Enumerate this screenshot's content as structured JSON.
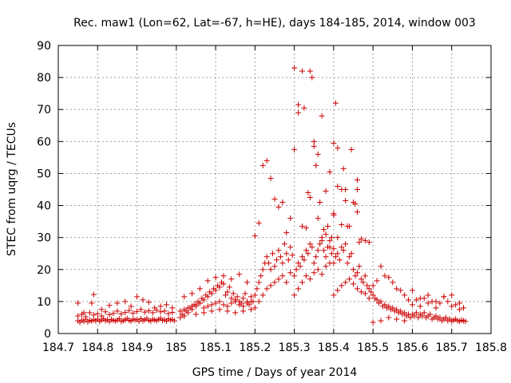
{
  "chart_data": {
    "type": "scatter",
    "title": "Rec. maw1 (Lon=62, Lat=-67, h=HE), days 184-185, 2014, window 003",
    "xlabel": "GPS time / Days of year 2014",
    "ylabel": "STEC from uqrg / TECUs",
    "xlim": [
      184.7,
      185.8
    ],
    "ylim": [
      0,
      90
    ],
    "xticks": [
      184.7,
      184.8,
      184.9,
      185,
      185.1,
      185.2,
      185.3,
      185.4,
      185.5,
      185.6,
      185.7,
      185.8
    ],
    "xtick_labels": [
      "184.7",
      "184.8",
      "184.9",
      "185",
      "185.1",
      "185.2",
      "185.3",
      "185.4",
      "185.5",
      "185.6",
      "185.7",
      "185.8"
    ],
    "yticks": [
      0,
      10,
      20,
      30,
      40,
      50,
      60,
      70,
      80,
      90
    ],
    "ytick_labels": [
      "0",
      "10",
      "20",
      "30",
      "40",
      "50",
      "60",
      "70",
      "80",
      "90"
    ],
    "grid": true,
    "marker": "+",
    "color": "#cc0000",
    "series": [
      {
        "x": [
          184.75,
          184.755,
          184.76,
          184.765,
          184.77,
          184.775,
          184.78,
          184.785,
          184.79,
          184.795,
          184.8,
          184.805,
          184.81,
          184.815,
          184.82,
          184.825,
          184.83,
          184.835,
          184.84,
          184.845,
          184.85,
          184.855,
          184.86,
          184.865,
          184.87,
          184.875,
          184.88,
          184.885,
          184.89,
          184.895,
          184.9,
          184.905,
          184.91,
          184.915,
          184.92,
          184.925,
          184.93,
          184.935,
          184.94,
          184.945,
          184.95,
          184.955,
          184.96,
          184.965,
          184.97,
          184.975,
          184.98,
          184.985,
          184.99,
          184.995,
          184.75,
          184.76,
          184.77,
          184.78,
          184.79,
          184.8,
          184.81,
          184.82,
          184.83,
          184.84,
          184.85,
          184.86,
          184.87,
          184.88,
          184.89,
          184.9,
          184.91,
          184.92,
          184.93,
          184.94,
          184.95,
          184.96,
          184.97,
          184.98,
          184.99,
          184.75,
          184.765,
          184.785,
          184.79,
          184.81,
          184.83,
          184.85,
          184.87,
          184.885,
          184.9,
          184.915,
          184.93,
          184.945,
          184.96,
          184.975,
          184.99,
          185.01,
          185.015,
          185.02,
          185.025,
          185.03,
          185.035,
          185.04,
          185.045,
          185.05,
          185.055,
          185.06,
          185.065,
          185.07,
          185.075,
          185.08,
          185.085,
          185.09,
          185.095,
          185.1,
          185.105,
          185.11,
          185.115,
          185.12,
          185.125,
          185.13,
          185.135,
          185.14,
          185.145,
          185.15,
          185.155,
          185.16,
          185.165,
          185.17,
          185.175,
          185.18,
          185.185,
          185.19,
          185.195,
          185.01,
          185.02,
          185.03,
          185.04,
          185.05,
          185.06,
          185.07,
          185.08,
          185.09,
          185.1,
          185.11,
          185.12,
          185.13,
          185.14,
          185.15,
          185.16,
          185.17,
          185.18,
          185.19,
          185.02,
          185.04,
          185.06,
          185.08,
          185.1,
          185.12,
          185.14,
          185.16,
          185.18,
          185.02,
          185.05,
          185.07,
          185.09,
          185.11,
          185.13,
          185.15,
          185.17,
          185.19,
          185.2,
          185.205,
          185.21,
          185.215,
          185.22,
          185.225,
          185.23,
          185.235,
          185.24,
          185.245,
          185.25,
          185.255,
          185.26,
          185.265,
          185.27,
          185.275,
          185.28,
          185.285,
          185.29,
          185.295,
          185.2,
          185.21,
          185.22,
          185.23,
          185.24,
          185.25,
          185.26,
          185.27,
          185.28,
          185.29,
          185.2,
          185.21,
          185.22,
          185.23,
          185.24,
          185.25,
          185.26,
          185.27,
          185.28,
          185.29,
          185.3,
          185.305,
          185.31,
          185.315,
          185.32,
          185.325,
          185.33,
          185.335,
          185.34,
          185.345,
          185.35,
          185.355,
          185.36,
          185.365,
          185.37,
          185.375,
          185.38,
          185.385,
          185.39,
          185.395,
          185.3,
          185.31,
          185.32,
          185.33,
          185.34,
          185.35,
          185.36,
          185.37,
          185.38,
          185.39,
          185.3,
          185.31,
          185.32,
          185.33,
          185.34,
          185.35,
          185.36,
          185.37,
          185.38,
          185.39,
          185.4,
          185.405,
          185.41,
          185.415,
          185.42,
          185.425,
          185.43,
          185.435,
          185.44,
          185.445,
          185.45,
          185.455,
          185.46,
          185.465,
          185.47,
          185.475,
          185.48,
          185.485,
          185.49,
          185.495,
          185.4,
          185.41,
          185.42,
          185.43,
          185.44,
          185.45,
          185.46,
          185.47,
          185.48,
          185.49,
          185.4,
          185.41,
          185.42,
          185.43,
          185.44,
          185.45,
          185.46,
          185.47,
          185.48,
          185.49,
          185.5,
          185.505,
          185.51,
          185.515,
          185.52,
          185.525,
          185.53,
          185.535,
          185.54,
          185.545,
          185.55,
          185.555,
          185.56,
          185.565,
          185.57,
          185.575,
          185.58,
          185.585,
          185.59,
          185.595,
          185.5,
          185.51,
          185.52,
          185.53,
          185.54,
          185.55,
          185.56,
          185.57,
          185.58,
          185.59,
          185.5,
          185.52,
          185.54,
          185.56,
          185.58,
          185.6,
          185.605,
          185.61,
          185.615,
          185.62,
          185.625,
          185.63,
          185.635,
          185.64,
          185.645,
          185.65,
          185.655,
          185.66,
          185.665,
          185.67,
          185.675,
          185.68,
          185.685,
          185.69,
          185.695,
          185.7,
          185.705,
          185.71,
          185.715,
          185.72,
          185.725,
          185.73,
          185.735,
          185.6,
          185.61,
          185.62,
          185.63,
          185.64,
          185.65,
          185.66,
          185.67,
          185.68,
          185.69,
          185.7,
          185.71,
          185.72,
          185.73,
          185.6,
          185.62,
          185.64,
          185.66,
          185.68,
          185.7,
          185.72,
          185.4,
          185.4,
          185.405,
          185.41,
          185.41,
          185.42,
          185.425,
          185.43,
          185.435,
          185.445,
          185.455,
          185.46,
          185.465,
          185.46,
          185.3,
          185.31,
          185.32,
          185.325,
          185.335,
          185.34,
          185.345,
          185.35,
          185.355,
          185.36,
          185.365,
          185.37,
          185.375,
          185.38,
          185.385,
          185.39,
          185.395,
          185.4
        ],
        "y": [
          4.0,
          3.5,
          4.2,
          3.8,
          4.5,
          3.6,
          4.1,
          3.9,
          4.3,
          4.0,
          4.5,
          3.8,
          4.2,
          4.6,
          4.0,
          4.3,
          3.7,
          4.4,
          4.1,
          3.9,
          4.2,
          4.6,
          3.8,
          4.0,
          4.3,
          4.7,
          4.1,
          3.9,
          4.5,
          4.2,
          4.4,
          3.8,
          4.6,
          4.0,
          4.3,
          4.7,
          4.1,
          3.9,
          4.5,
          4.2,
          4.0,
          4.4,
          4.8,
          4.1,
          4.3,
          3.9,
          4.6,
          4.2,
          4.4,
          4.0,
          5.5,
          6.0,
          5.2,
          6.5,
          5.8,
          6.2,
          5.5,
          6.8,
          5.9,
          6.3,
          7.0,
          6.1,
          6.6,
          7.2,
          6.4,
          6.9,
          7.5,
          6.7,
          7.1,
          6.5,
          7.3,
          6.8,
          7.0,
          6.2,
          6.6,
          9.5,
          6.5,
          9.5,
          12.2,
          7.5,
          8.8,
          9.5,
          10.0,
          8.5,
          11.5,
          10.5,
          9.8,
          8.0,
          8.5,
          9.0,
          8.0,
          5.0,
          6.0,
          5.5,
          7.0,
          6.5,
          8.0,
          7.5,
          9.0,
          8.5,
          10.0,
          9.5,
          11.0,
          10.5,
          12.0,
          11.5,
          13.0,
          12.5,
          14.0,
          13.5,
          15.0,
          14.5,
          16.0,
          15.5,
          12.0,
          13.0,
          14.5,
          11.0,
          12.5,
          10.5,
          11.5,
          10.0,
          9.5,
          11.0,
          12.5,
          10.0,
          9.0,
          11.5,
          10.0,
          7.0,
          7.5,
          8.0,
          8.5,
          9.0,
          9.5,
          8.0,
          8.5,
          9.0,
          9.5,
          10.0,
          9.0,
          8.5,
          9.5,
          10.0,
          9.0,
          8.5,
          9.5,
          10.0,
          11.5,
          12.5,
          14.0,
          16.5,
          17.5,
          18.0,
          17.0,
          18.5,
          16.0,
          5.5,
          6.0,
          6.5,
          7.0,
          7.5,
          7.0,
          6.5,
          7.0,
          7.5,
          12.0,
          14.0,
          16.0,
          18.0,
          20.0,
          22.0,
          24.0,
          22.0,
          20.0,
          25.0,
          21.0,
          23.0,
          26.0,
          24.0,
          22.0,
          28.0,
          25.0,
          23.0,
          27.0,
          24.5,
          8.0,
          10.0,
          12.0,
          14.0,
          15.0,
          16.0,
          17.0,
          18.0,
          16.0,
          19.0,
          30.5,
          34.5,
          52.5,
          54.0,
          48.5,
          42.0,
          39.5,
          41.0,
          31.5,
          36.0,
          18.0,
          20.0,
          22.0,
          21.0,
          24.0,
          23.0,
          26.0,
          25.0,
          28.0,
          27.0,
          22.0,
          24.0,
          26.0,
          28.0,
          30.0,
          26.0,
          24.0,
          27.0,
          29.0,
          25.0,
          12.0,
          14.0,
          16.0,
          18.0,
          17.0,
          19.0,
          20.0,
          18.5,
          21.0,
          22.0,
          57.5,
          71.5,
          33.5,
          33.0,
          42.5,
          58.5,
          56.0,
          68.0,
          44.5,
          50.5,
          22.0,
          24.0,
          25.0,
          23.0,
          27.0,
          26.0,
          28.0,
          22.0,
          24.0,
          25.0,
          20.0,
          18.0,
          19.0,
          21.0,
          17.0,
          16.0,
          18.0,
          15.0,
          14.0,
          13.0,
          12.0,
          13.5,
          15.0,
          16.0,
          17.0,
          15.5,
          14.0,
          13.0,
          12.5,
          11.0,
          37.5,
          30.0,
          34.0,
          45.0,
          33.5,
          41.0,
          38.0,
          29.5,
          29.0,
          28.5,
          12.0,
          11.0,
          10.5,
          9.5,
          10.0,
          8.5,
          9.0,
          8.0,
          8.5,
          7.5,
          8.0,
          7.0,
          7.5,
          6.5,
          7.0,
          6.0,
          6.5,
          5.5,
          6.0,
          5.0,
          15.0,
          16.5,
          21.0,
          18.0,
          17.5,
          16.0,
          14.0,
          13.5,
          12.0,
          10.5,
          3.5,
          4.0,
          5.0,
          4.5,
          4.0,
          6.0,
          5.5,
          6.5,
          5.0,
          6.0,
          5.5,
          6.5,
          5.0,
          5.5,
          6.0,
          4.5,
          5.0,
          5.5,
          4.5,
          5.0,
          4.0,
          4.5,
          5.0,
          4.0,
          4.5,
          3.8,
          4.2,
          4.5,
          4.0,
          3.8,
          4.2,
          4.0,
          3.8,
          9.0,
          10.5,
          8.5,
          11.0,
          9.5,
          10.0,
          8.0,
          9.5,
          11.5,
          10.0,
          8.5,
          9.0,
          7.5,
          8.0,
          13.5,
          11.0,
          12.0,
          10.0,
          11.5,
          12.0,
          9.5,
          59.5,
          37.0,
          72.0,
          58.0,
          46.0,
          45.0,
          51.5,
          41.5,
          33.5,
          57.5,
          40.5,
          48.0,
          28.5,
          45.0,
          83.0,
          69.0,
          82.0,
          70.5,
          44.0,
          82.0,
          80.0,
          60.0,
          52.5,
          36.0,
          41.0,
          29.0,
          32.5,
          31.0,
          33.5,
          27.0,
          30.0,
          26.5
        ]
      }
    ]
  }
}
